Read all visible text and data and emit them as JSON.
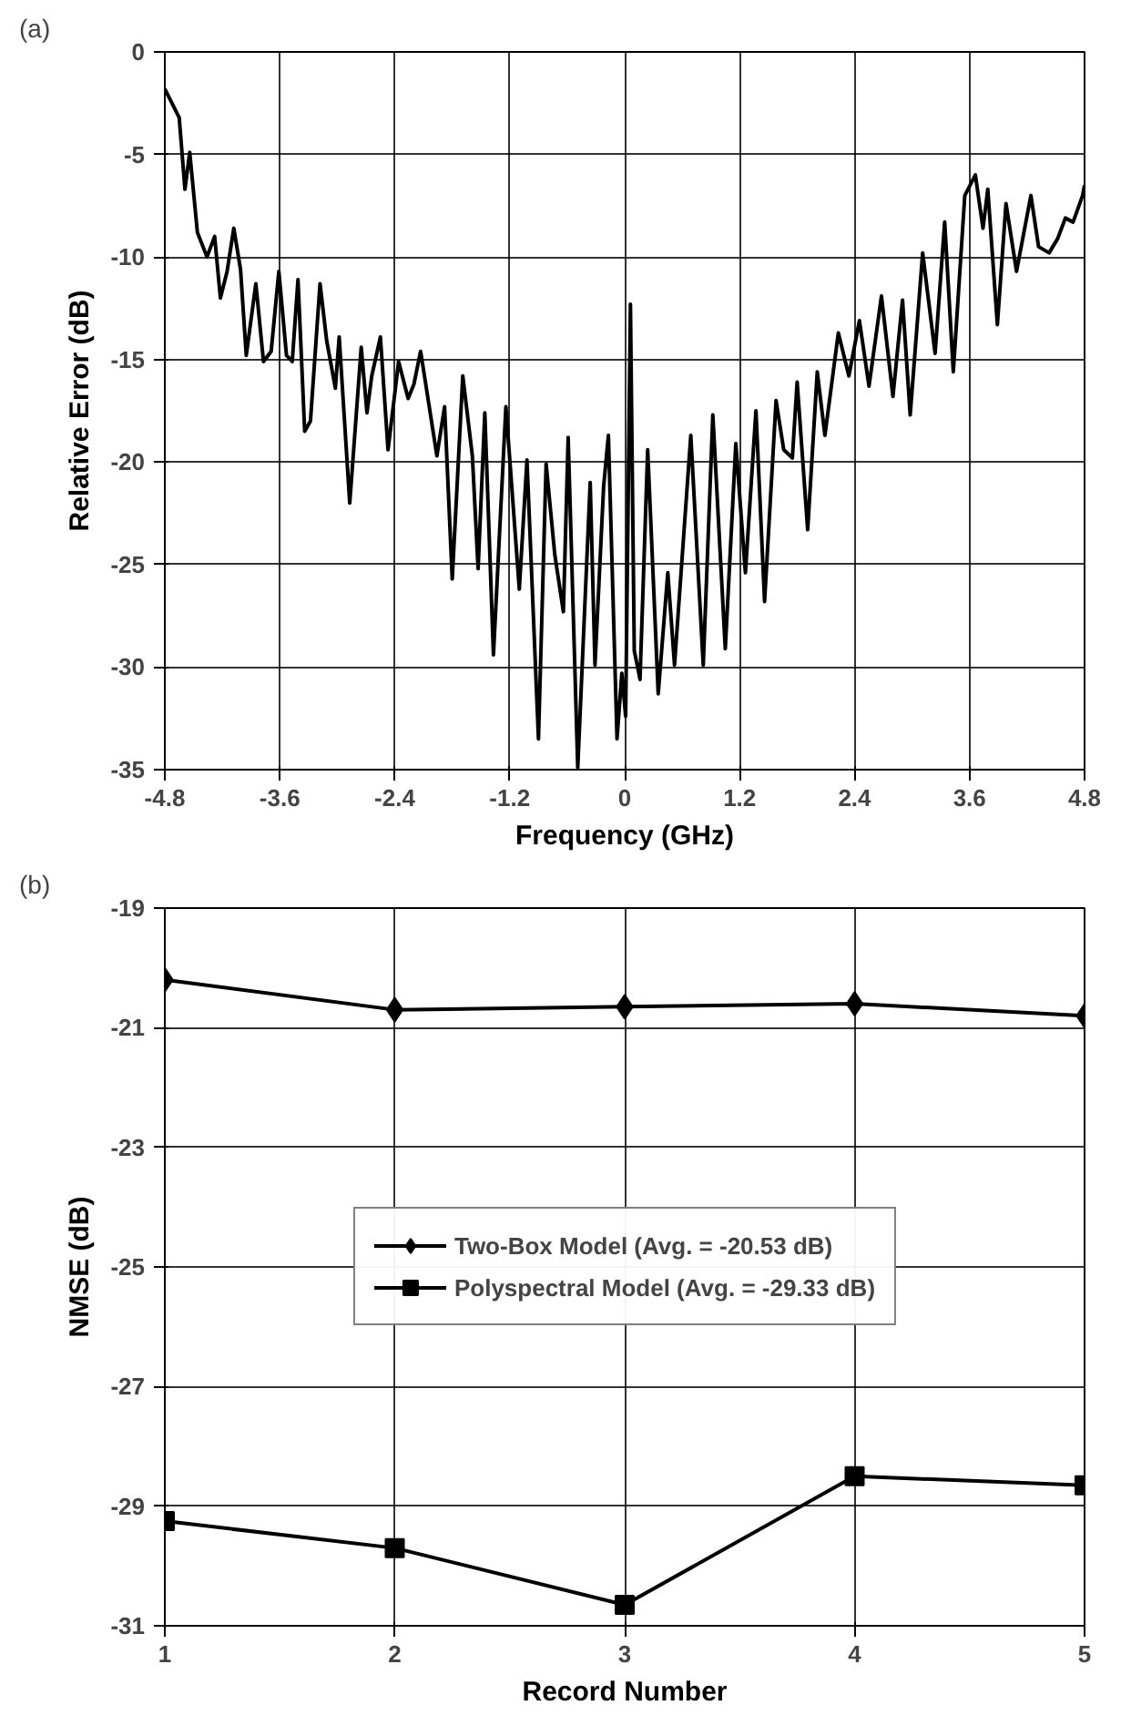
{
  "chart_data": [
    {
      "type": "line",
      "title": "(a)",
      "xlabel": "Frequency (GHz)",
      "ylabel": "Relative Error (dB)",
      "xlim": [
        -4.8,
        4.8
      ],
      "xticks": [
        -4.8,
        -3.6,
        -2.4,
        -1.2,
        0,
        1.2,
        2.4,
        3.6,
        4.8
      ],
      "ylim": [
        -35,
        0
      ],
      "yticks": [
        -35,
        -30,
        -25,
        -20,
        -15,
        -10,
        -5,
        0
      ],
      "grid": true,
      "legend": false,
      "marker": "none",
      "line_style": "solid",
      "series": [
        {
          "color": "#000000",
          "x": [
            -4.8,
            -4.65,
            -4.59,
            -4.54,
            -4.46,
            -4.36,
            -4.28,
            -4.22,
            -4.15,
            -4.08,
            -4.01,
            -3.95,
            -3.85,
            -3.77,
            -3.69,
            -3.61,
            -3.53,
            -3.47,
            -3.41,
            -3.34,
            -3.28,
            -3.18,
            -3.11,
            -3.02,
            -2.98,
            -2.87,
            -2.75,
            -2.69,
            -2.64,
            -2.55,
            -2.47,
            -2.36,
            -2.26,
            -2.2,
            -2.13,
            -1.96,
            -1.88,
            -1.8,
            -1.69,
            -1.59,
            -1.53,
            -1.46,
            -1.37,
            -1.24,
            -1.1,
            -1.02,
            -0.9,
            -0.82,
            -0.73,
            -0.64,
            -0.59,
            -0.49,
            -0.36,
            -0.31,
            -0.22,
            -0.17,
            -0.08,
            -0.03,
            0.01,
            0.06,
            0.1,
            0.16,
            0.24,
            0.35,
            0.45,
            0.52,
            0.69,
            0.82,
            0.92,
            1.05,
            1.16,
            1.26,
            1.37,
            1.46,
            1.58,
            1.66,
            1.75,
            1.8,
            1.91,
            2.01,
            2.09,
            2.23,
            2.34,
            2.45,
            2.55,
            2.68,
            2.8,
            2.9,
            2.98,
            3.11,
            3.24,
            3.34,
            3.43,
            3.55,
            3.66,
            3.74,
            3.79,
            3.89,
            3.98,
            4.09,
            4.24,
            4.32,
            4.43,
            4.52,
            4.6,
            4.68,
            4.78,
            4.8
          ],
          "values": [
            -1.8,
            -3.2,
            -6.7,
            -4.9,
            -8.8,
            -10.0,
            -9.0,
            -12.0,
            -10.7,
            -8.6,
            -10.6,
            -14.8,
            -11.3,
            -15.1,
            -14.6,
            -10.7,
            -14.8,
            -15.1,
            -11.1,
            -18.5,
            -18.0,
            -11.3,
            -14.1,
            -16.4,
            -13.9,
            -22.0,
            -14.4,
            -17.6,
            -15.8,
            -13.9,
            -19.4,
            -15.1,
            -16.9,
            -16.2,
            -14.6,
            -19.7,
            -17.3,
            -25.7,
            -15.8,
            -19.7,
            -25.2,
            -17.6,
            -29.4,
            -17.3,
            -26.2,
            -19.9,
            -33.5,
            -20.1,
            -24.5,
            -27.3,
            -18.8,
            -34.9,
            -21.0,
            -29.9,
            -21.2,
            -18.7,
            -33.5,
            -30.3,
            -32.4,
            -12.3,
            -29.2,
            -30.6,
            -19.4,
            -31.3,
            -25.4,
            -29.9,
            -18.7,
            -29.9,
            -17.7,
            -29.1,
            -19.1,
            -25.4,
            -17.5,
            -26.8,
            -17.0,
            -19.4,
            -19.8,
            -16.1,
            -23.3,
            -15.6,
            -18.7,
            -13.7,
            -15.8,
            -13.1,
            -16.3,
            -11.9,
            -16.8,
            -12.1,
            -17.7,
            -9.8,
            -14.7,
            -8.3,
            -15.6,
            -7.0,
            -6.0,
            -8.6,
            -6.7,
            -13.3,
            -7.4,
            -10.7,
            -7.0,
            -9.5,
            -9.8,
            -9.1,
            -8.1,
            -8.3,
            -7.0,
            -6.5
          ]
        }
      ]
    },
    {
      "type": "line",
      "title": "(b)",
      "xlabel": "Record Number",
      "ylabel": "NMSE (dB)",
      "xlim": [
        1,
        5
      ],
      "xticks": [
        1,
        2,
        3,
        4,
        5
      ],
      "ylim": [
        -31,
        -19
      ],
      "yticks": [
        -31,
        -29,
        -27,
        -25,
        -23,
        -21,
        -19
      ],
      "grid": true,
      "legend": "center",
      "line_style": "solid",
      "x": [
        1,
        2,
        3,
        4,
        5
      ],
      "series": [
        {
          "name": "Two-Box Model (Avg. = -20.53 dB)",
          "color": "#000000",
          "marker": "diamond",
          "values": [
            -20.2,
            -20.7,
            -20.65,
            -20.6,
            -20.8
          ]
        },
        {
          "name": "Polyspectral Model (Avg. = -29.33 dB)",
          "color": "#000000",
          "marker": "square",
          "values": [
            -29.25,
            -29.7,
            -30.65,
            -28.5,
            -28.65
          ]
        }
      ]
    }
  ]
}
